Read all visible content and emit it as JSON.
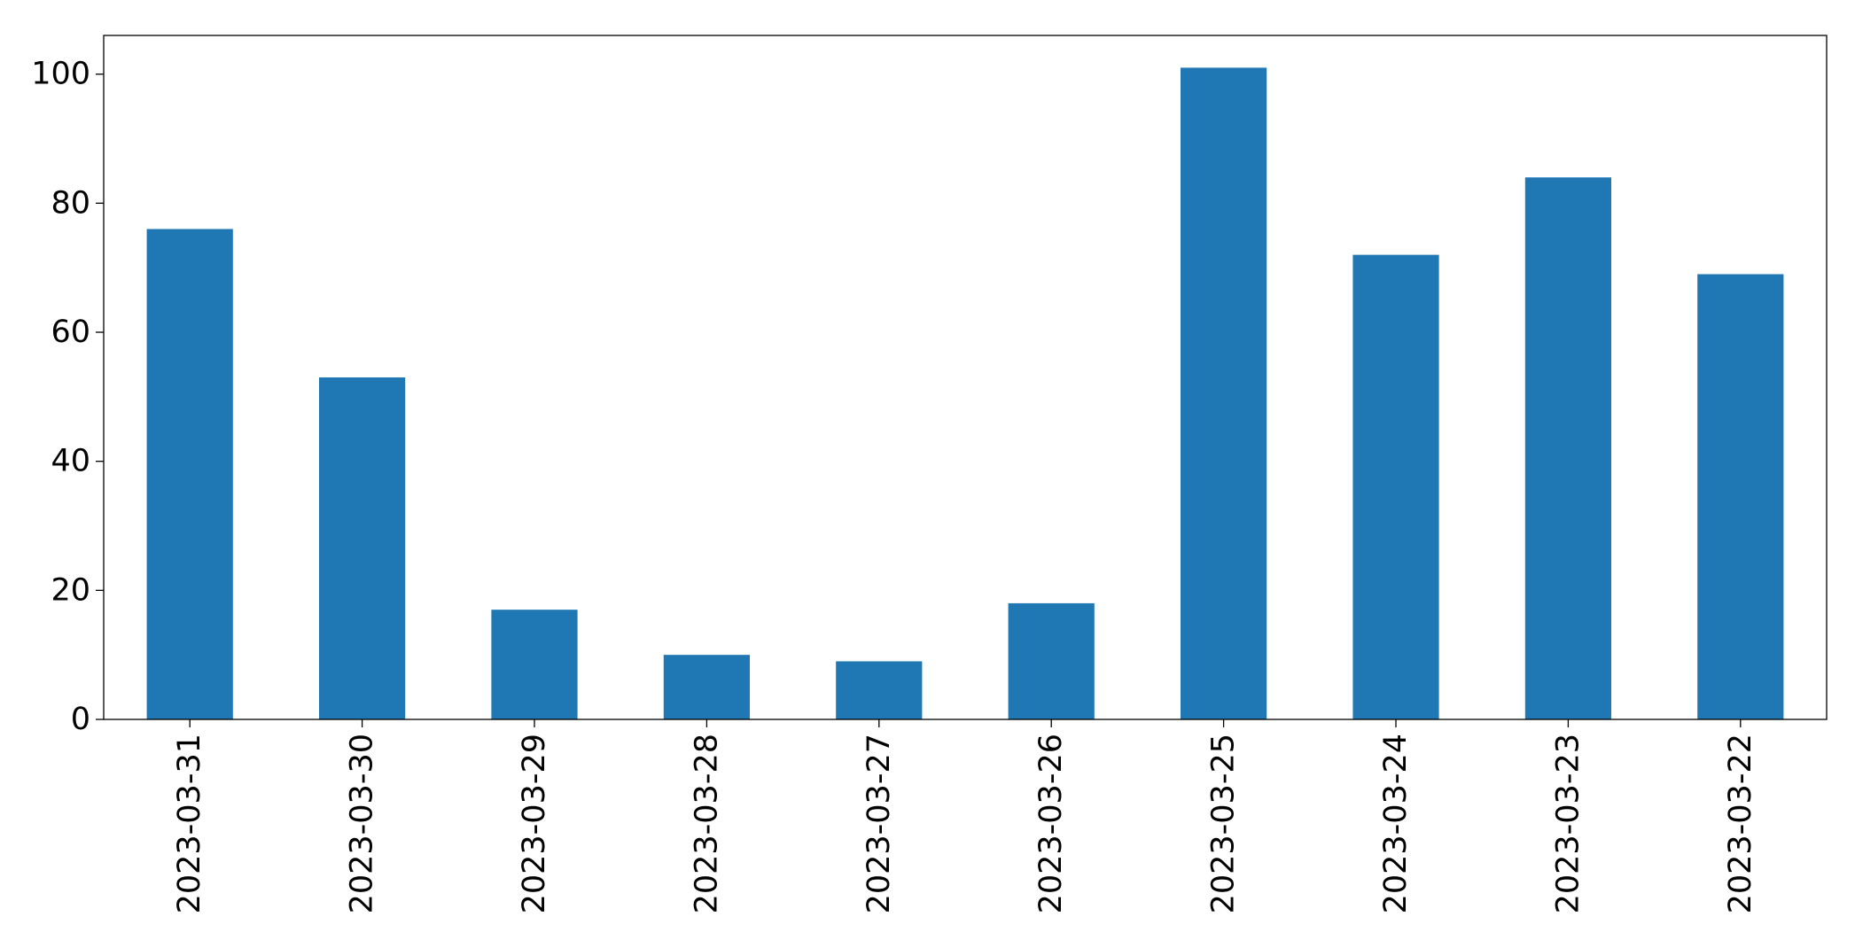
{
  "chart_data": {
    "type": "bar",
    "title": "",
    "xlabel": "",
    "ylabel": "",
    "categories": [
      "2023-03-31",
      "2023-03-30",
      "2023-03-29",
      "2023-03-28",
      "2023-03-27",
      "2023-03-26",
      "2023-03-25",
      "2023-03-24",
      "2023-03-23",
      "2023-03-22"
    ],
    "values": [
      76,
      53,
      17,
      10,
      9,
      18,
      101,
      72,
      84,
      69
    ],
    "ylim": [
      0,
      106
    ],
    "yticks": [
      0,
      20,
      40,
      60,
      80,
      100
    ],
    "grid": false,
    "legend": "none",
    "bar_color": "#1f77b4",
    "xtick_rotation": "vertical"
  }
}
